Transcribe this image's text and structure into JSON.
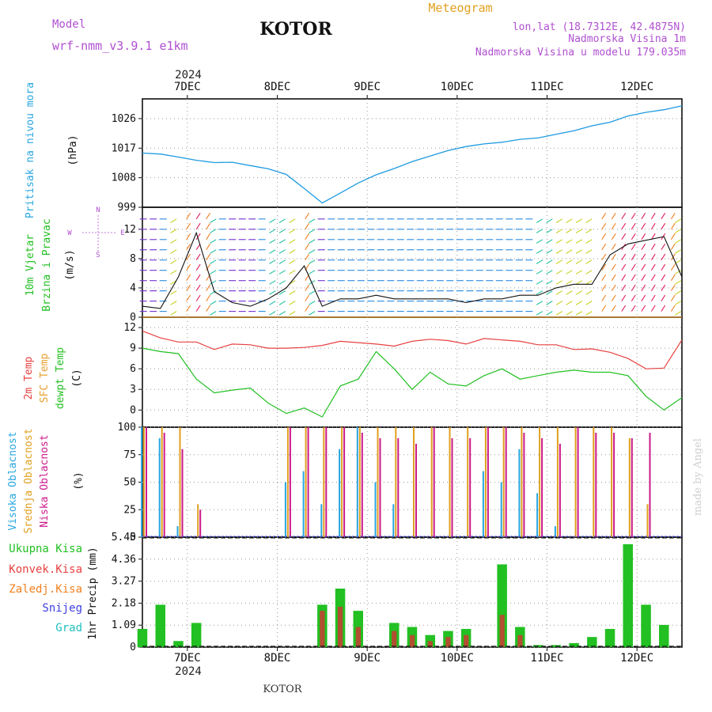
{
  "header": {
    "model_label": "Model",
    "model_name": "wrf-nmm_v3.9.1 e1km",
    "title": "KOTOR",
    "meteogram_label": "Meteogram",
    "lonlat": "lon,lat (18.7312E, 42.4875N)",
    "elevation": "Nadmorska Visina 1m",
    "model_elevation": "Nadmorska Visina u modelu 179.035m",
    "year": "2024",
    "footer_title": "KOTOR",
    "credit": "made by Angel"
  },
  "colors": {
    "pressure": "#1e9be0",
    "temp2m": "#e84040",
    "sfctemp": "#e8a030",
    "dewpoint": "#22c022",
    "high_cloud": "#2aa6e0",
    "mid_cloud": "#e0a020",
    "low_cloud": "#cc1a8a",
    "total_precip": "#22c022",
    "conv_precip": "#e84040",
    "frozen_precip": "#f08020",
    "snow": "#4040e0",
    "hail": "#20c0c0",
    "wind_label_violet": "#b050d0"
  },
  "chart_data": [
    {
      "type": "line",
      "panel": "pressure",
      "ylabel": [
        "Pritisak na nivou mora",
        "(hPa)"
      ],
      "yticks": [
        "999",
        "1008",
        "1017",
        "1026"
      ],
      "xticks": [
        "7DEC",
        "8DEC",
        "9DEC",
        "10DEC",
        "11DEC",
        "12DEC"
      ],
      "ylim": [
        999,
        1032
      ],
      "x_days": [
        0.0,
        0.2,
        0.4,
        0.6,
        0.8,
        1.0,
        1.2,
        1.4,
        1.6,
        1.8,
        2.0,
        2.2,
        2.4,
        2.6,
        2.8,
        3.0,
        3.2,
        3.4,
        3.6,
        3.8,
        4.0,
        4.2,
        4.4,
        4.6,
        4.8,
        5.0,
        5.2,
        5.4,
        5.6,
        5.8,
        6.0
      ],
      "x_start_label": "6DEC 12h (approx)",
      "series": [
        {
          "values": [
            1015.5,
            1015.2,
            1014.3,
            1013.3,
            1012.6,
            1012.7,
            1011.7,
            1010.7,
            1009.0,
            1004.7,
            1000.3,
            1003.3,
            1006.4,
            1008.9,
            1010.8,
            1012.9,
            1014.6,
            1016.3,
            1017.5,
            1018.3,
            1018.8,
            1019.7,
            1020.1,
            1021.2,
            1022.3,
            1023.8,
            1024.9,
            1026.8,
            1027.9,
            1028.7,
            1029.9
          ]
        }
      ]
    },
    {
      "type": "line",
      "panel": "wind",
      "ylabel": [
        "10m Vjetar",
        "Brzina i Pravac",
        "(m/s)"
      ],
      "compass": [
        "N",
        "W",
        "E",
        "S"
      ],
      "yticks": [
        "0",
        "4",
        "8",
        "12"
      ],
      "ylim": [
        0,
        15
      ],
      "x_days": [
        0.0,
        0.2,
        0.4,
        0.6,
        0.8,
        1.0,
        1.2,
        1.4,
        1.6,
        1.8,
        2.0,
        2.2,
        2.4,
        2.6,
        2.8,
        3.0,
        3.2,
        3.4,
        3.6,
        3.8,
        4.0,
        4.2,
        4.4,
        4.6,
        4.8,
        5.0,
        5.2,
        5.4,
        5.6,
        5.8,
        6.0
      ],
      "series": [
        {
          "values": [
            1.5,
            1.2,
            5.5,
            11.5,
            3.5,
            2.0,
            1.5,
            2.5,
            4.0,
            7.0,
            1.5,
            2.5,
            2.5,
            3.0,
            2.5,
            2.5,
            2.5,
            2.5,
            2.0,
            2.5,
            2.5,
            3.0,
            3.0,
            4.0,
            4.5,
            4.5,
            8.5,
            10.0,
            10.5,
            11.0,
            5.5
          ]
        }
      ]
    },
    {
      "type": "line",
      "panel": "temperature",
      "ylabel": [
        "2m Temp",
        "SFC Temp",
        "dewpt Temp",
        "(C)"
      ],
      "yticks": [
        "0",
        "3",
        "6",
        "9",
        "12"
      ],
      "ylim": [
        -2.5,
        13.5
      ],
      "x_days": [
        0.0,
        0.2,
        0.4,
        0.6,
        0.8,
        1.0,
        1.2,
        1.4,
        1.6,
        1.8,
        2.0,
        2.2,
        2.4,
        2.6,
        2.8,
        3.0,
        3.2,
        3.4,
        3.6,
        3.8,
        4.0,
        4.2,
        4.4,
        4.6,
        4.8,
        5.0,
        5.2,
        5.4,
        5.6,
        5.8,
        6.0
      ],
      "series": [
        {
          "name": "2m Temp",
          "values": [
            11.5,
            10.5,
            9.9,
            9.9,
            8.8,
            9.6,
            9.5,
            9.0,
            9.0,
            9.1,
            9.4,
            10.0,
            9.8,
            9.6,
            9.3,
            10.0,
            10.3,
            10.1,
            9.6,
            10.4,
            10.2,
            10.0,
            9.5,
            9.5,
            8.8,
            8.9,
            8.4,
            7.5,
            6.0,
            6.1,
            10.2
          ]
        },
        {
          "name": "SFC Temp",
          "values": [
            13.5,
            13.5,
            13.5,
            13.5,
            13.5,
            13.5,
            13.5,
            13.5,
            13.5,
            13.5,
            13.5,
            13.5,
            13.5,
            13.5,
            13.5,
            13.5,
            13.5,
            13.5,
            13.5,
            13.5,
            13.5,
            13.5,
            13.5,
            13.5,
            13.5,
            13.5,
            13.5,
            13.5,
            13.5,
            13.5,
            13.5
          ]
        },
        {
          "name": "dewpt Temp",
          "values": [
            9.0,
            8.5,
            8.2,
            4.5,
            2.5,
            2.9,
            3.2,
            1.0,
            -0.5,
            0.3,
            -1.0,
            3.5,
            4.5,
            8.5,
            6.0,
            3.0,
            5.5,
            3.8,
            3.5,
            5.0,
            6.0,
            4.5,
            5.0,
            5.5,
            5.8,
            5.5,
            5.5,
            5.0,
            2.0,
            0.0,
            1.8
          ]
        }
      ]
    },
    {
      "type": "bar",
      "panel": "clouds",
      "ylabel": [
        "Visoka Oblacnost",
        "Srednja Oblacnost",
        "Niska Oblacnost",
        "(%)"
      ],
      "yticks": [
        "0",
        "25",
        "50",
        "75",
        "100"
      ],
      "ylim": [
        0,
        100
      ],
      "x_days": [
        0.0,
        0.2,
        0.4,
        0.6,
        0.8,
        1.0,
        1.2,
        1.4,
        1.6,
        1.8,
        2.0,
        2.2,
        2.4,
        2.6,
        2.8,
        3.0,
        3.2,
        3.4,
        3.6,
        3.8,
        4.0,
        4.2,
        4.4,
        4.6,
        4.8,
        5.0,
        5.2,
        5.4,
        5.6,
        5.8,
        6.0
      ],
      "series": [
        {
          "name": "Visoka Oblacnost",
          "values": [
            100,
            90,
            10,
            0,
            0,
            0,
            0,
            0,
            50,
            60,
            30,
            80,
            100,
            50,
            30,
            0,
            0,
            0,
            0,
            60,
            50,
            80,
            40,
            10,
            0,
            0,
            0,
            0,
            0,
            0,
            0
          ]
        },
        {
          "name": "Srednja Oblacnost",
          "values": [
            100,
            100,
            100,
            30,
            0,
            0,
            0,
            0,
            100,
            100,
            100,
            100,
            100,
            100,
            100,
            100,
            100,
            100,
            100,
            100,
            100,
            100,
            100,
            100,
            100,
            100,
            100,
            90,
            30,
            0,
            0
          ]
        },
        {
          "name": "Niska Oblacnost",
          "values": [
            100,
            95,
            80,
            25,
            0,
            0,
            0,
            0,
            100,
            100,
            100,
            100,
            95,
            90,
            90,
            85,
            100,
            90,
            90,
            100,
            100,
            95,
            90,
            85,
            100,
            95,
            95,
            90,
            95,
            0,
            0
          ]
        }
      ]
    },
    {
      "type": "bar",
      "panel": "precipitation",
      "ylabel": [
        "1hr Precip (mm)"
      ],
      "legend": [
        "Ukupna Kisa",
        "Konvek.Kisa",
        "Zaledj.Kisa",
        "Snijeg",
        "Grad"
      ],
      "yticks": [
        "0",
        "1.09",
        "2.18",
        "3.27",
        "4.36",
        "5.45"
      ],
      "ylim": [
        0,
        5.45
      ],
      "x_days": [
        0.0,
        0.2,
        0.4,
        0.6,
        0.8,
        1.0,
        1.2,
        1.4,
        1.6,
        1.8,
        2.0,
        2.2,
        2.4,
        2.6,
        2.8,
        3.0,
        3.2,
        3.4,
        3.6,
        3.8,
        4.0,
        4.2,
        4.4,
        4.6,
        4.8,
        5.0,
        5.2,
        5.4,
        5.6,
        5.8,
        6.0
      ],
      "series": [
        {
          "name": "Ukupna Kisa",
          "values": [
            0.9,
            2.1,
            0.3,
            1.2,
            0.0,
            0.0,
            0.0,
            0.0,
            0.0,
            0.0,
            2.1,
            2.9,
            1.8,
            0.0,
            1.2,
            1.0,
            0.6,
            0.8,
            0.9,
            0.0,
            4.1,
            1.0,
            0.1,
            0.1,
            0.2,
            0.5,
            0.9,
            5.1,
            2.1,
            1.1,
            0.0
          ]
        },
        {
          "name": "Konvek.Kisa",
          "values": [
            0.0,
            0.0,
            0.0,
            0.0,
            0.0,
            0.0,
            0.0,
            0.0,
            0.0,
            0.0,
            1.8,
            2.0,
            1.0,
            0.0,
            0.8,
            0.6,
            0.3,
            0.5,
            0.6,
            0.0,
            1.6,
            0.6,
            0.0,
            0.0,
            0.0,
            0.0,
            0.0,
            0.0,
            0.0,
            0.0,
            0.0
          ]
        }
      ]
    }
  ]
}
